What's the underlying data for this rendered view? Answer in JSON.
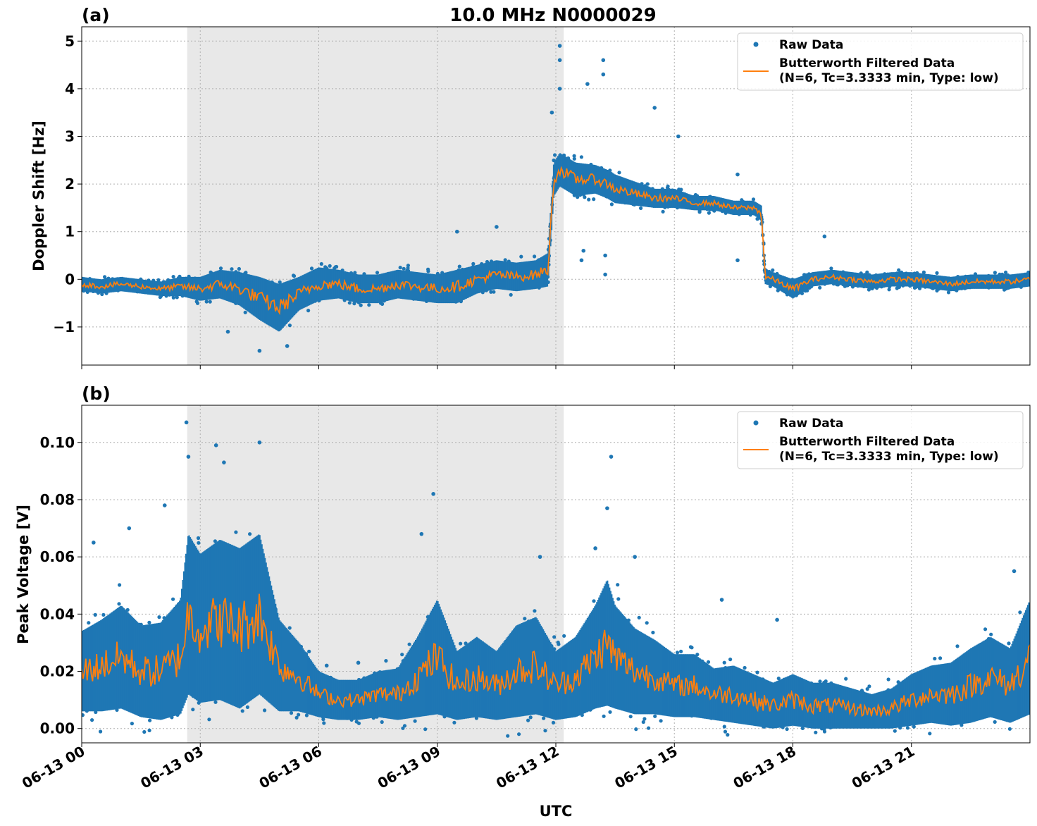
{
  "figure": {
    "xlabel": "UTC",
    "shade": {
      "start_hour": 2.67,
      "end_hour": 12.2,
      "color": "#e8e8e8"
    },
    "colors": {
      "raw": "#1f77b4",
      "filtered": "#ff7f0e",
      "grid": "#b0b0b0"
    }
  },
  "legend": {
    "raw": "Raw Data",
    "filtered_line1": "Butterworth Filtered Data",
    "filtered_line2": "(N=6, Tc=3.3333 min, Type: low)"
  },
  "chart_data": [
    {
      "type": "scatter",
      "panel_label": "(a)",
      "title": "10.0 MHz N0000029",
      "ylabel": "Doppler Shift [Hz]",
      "xlim": [
        0,
        24
      ],
      "ylim": [
        -1.8,
        5.3
      ],
      "yticks": [
        -1,
        0,
        1,
        2,
        3,
        4,
        5
      ],
      "ytick_labels": [
        "−1",
        "0",
        "1",
        "2",
        "3",
        "4",
        "5"
      ],
      "xticks": [
        0,
        3,
        6,
        9,
        12,
        15,
        18,
        21
      ],
      "xtick_labels": [],
      "grid": true,
      "legend_position": "top-right",
      "series": [
        {
          "name": "Raw Data",
          "style": "points",
          "x": [
            0,
            0.5,
            1,
            1.5,
            2,
            2.5,
            3,
            3.5,
            4,
            4.5,
            5,
            5.5,
            6,
            6.5,
            7,
            7.5,
            8,
            8.5,
            9,
            9.5,
            10,
            10.5,
            11,
            11.5,
            11.8,
            11.95,
            12.1,
            12.5,
            13,
            13.3,
            13.5,
            14,
            14.5,
            15,
            15.5,
            16,
            16.5,
            17,
            17.2,
            17.3,
            17.5,
            18,
            18.5,
            19,
            19.5,
            20,
            20.5,
            21,
            21.5,
            22,
            22.5,
            23,
            23.5,
            24
          ],
          "y_mid": [
            -0.1,
            -0.15,
            -0.1,
            -0.15,
            -0.2,
            -0.15,
            -0.2,
            -0.1,
            -0.2,
            -0.4,
            -0.6,
            -0.3,
            -0.1,
            -0.1,
            -0.2,
            -0.2,
            -0.1,
            -0.15,
            -0.2,
            -0.15,
            0.0,
            0.1,
            0.05,
            0.1,
            0.2,
            2.1,
            2.3,
            2.1,
            2.1,
            2.0,
            1.9,
            1.8,
            1.7,
            1.7,
            1.6,
            1.6,
            1.5,
            1.5,
            1.4,
            0.05,
            0.0,
            -0.2,
            0.0,
            0.05,
            0.0,
            -0.05,
            0.0,
            0.0,
            -0.05,
            -0.1,
            -0.05,
            -0.05,
            -0.05,
            0.0
          ],
          "spread": [
            0.15,
            0.15,
            0.15,
            0.15,
            0.15,
            0.2,
            0.25,
            0.3,
            0.35,
            0.45,
            0.5,
            0.35,
            0.35,
            0.3,
            0.3,
            0.3,
            0.3,
            0.3,
            0.3,
            0.35,
            0.3,
            0.3,
            0.3,
            0.3,
            0.35,
            0.35,
            0.35,
            0.35,
            0.3,
            0.3,
            0.3,
            0.25,
            0.2,
            0.2,
            0.15,
            0.15,
            0.15,
            0.15,
            0.15,
            0.15,
            0.15,
            0.2,
            0.15,
            0.15,
            0.15,
            0.15,
            0.15,
            0.15,
            0.15,
            0.15,
            0.15,
            0.15,
            0.15,
            0.15
          ],
          "outliers": [
            [
              11.9,
              3.5
            ],
            [
              12.1,
              4.9
            ],
            [
              12.1,
              4.6
            ],
            [
              12.1,
              4.0
            ],
            [
              12.8,
              4.1
            ],
            [
              13.2,
              4.6
            ],
            [
              13.2,
              4.3
            ],
            [
              13.25,
              0.1
            ],
            [
              13.25,
              0.5
            ],
            [
              14.5,
              3.6
            ],
            [
              12.65,
              0.4
            ],
            [
              12.7,
              0.6
            ],
            [
              16.6,
              0.4
            ],
            [
              16.6,
              2.2
            ],
            [
              18.8,
              0.9
            ],
            [
              9.5,
              1.0
            ],
            [
              10.5,
              1.1
            ],
            [
              4.5,
              -1.5
            ],
            [
              5.2,
              -1.4
            ],
            [
              3.7,
              -1.1
            ],
            [
              15.1,
              3.0
            ]
          ]
        },
        {
          "name": "Butterworth Filtered Data (N=6, Tc=3.3333 min, Type: low)",
          "style": "line",
          "x": [
            0,
            0.5,
            1,
            1.5,
            2,
            2.5,
            3,
            3.5,
            4,
            4.5,
            5,
            5.5,
            6,
            6.5,
            7,
            7.5,
            8,
            8.5,
            9,
            9.5,
            10,
            10.5,
            11,
            11.5,
            11.8,
            11.95,
            12.1,
            12.5,
            13,
            13.3,
            13.5,
            14,
            14.5,
            15,
            15.5,
            16,
            16.5,
            17,
            17.2,
            17.3,
            17.5,
            18,
            18.5,
            19,
            19.5,
            20,
            20.5,
            21,
            21.5,
            22,
            22.5,
            23,
            23.5,
            24
          ],
          "y": [
            -0.1,
            -0.15,
            -0.1,
            -0.15,
            -0.2,
            -0.15,
            -0.2,
            -0.1,
            -0.2,
            -0.4,
            -0.6,
            -0.3,
            -0.1,
            -0.1,
            -0.2,
            -0.2,
            -0.1,
            -0.15,
            -0.2,
            -0.15,
            0.0,
            0.1,
            0.05,
            0.1,
            0.2,
            2.1,
            2.3,
            2.1,
            2.1,
            2.0,
            1.9,
            1.8,
            1.7,
            1.7,
            1.6,
            1.6,
            1.5,
            1.5,
            1.4,
            0.05,
            0.0,
            -0.2,
            0.0,
            0.05,
            0.0,
            -0.05,
            0.0,
            0.0,
            -0.05,
            -0.1,
            -0.05,
            -0.05,
            -0.05,
            0.0
          ]
        }
      ]
    },
    {
      "type": "scatter",
      "panel_label": "(b)",
      "title": "",
      "ylabel": "Peak Voltage [V]",
      "xlim": [
        0,
        24
      ],
      "ylim": [
        -0.005,
        0.113
      ],
      "yticks": [
        0.0,
        0.02,
        0.04,
        0.06,
        0.08,
        0.1
      ],
      "ytick_labels": [
        "0.00",
        "0.02",
        "0.04",
        "0.06",
        "0.08",
        "0.10"
      ],
      "xticks": [
        0,
        3,
        6,
        9,
        12,
        15,
        18,
        21
      ],
      "xtick_labels": [
        "06-13 00",
        "06-13 03",
        "06-13 06",
        "06-13 09",
        "06-13 12",
        "06-13 15",
        "06-13 18",
        "06-13 21"
      ],
      "grid": true,
      "legend_position": "top-right",
      "series": [
        {
          "name": "Raw Data",
          "style": "points",
          "x": [
            0,
            0.5,
            1,
            1.5,
            2,
            2.5,
            2.7,
            3,
            3.5,
            4,
            4.5,
            5,
            5.5,
            6,
            6.5,
            7,
            7.5,
            8,
            8.5,
            9,
            9.5,
            10,
            10.5,
            11,
            11.5,
            12,
            12.5,
            13,
            13.3,
            13.5,
            14,
            14.5,
            15,
            15.5,
            16,
            16.5,
            17,
            17.5,
            18,
            18.5,
            19,
            19.5,
            20,
            20.5,
            21,
            21.5,
            22,
            22.5,
            23,
            23.5,
            24
          ],
          "y_mid": [
            0.02,
            0.022,
            0.025,
            0.02,
            0.02,
            0.025,
            0.04,
            0.035,
            0.038,
            0.035,
            0.04,
            0.022,
            0.018,
            0.012,
            0.01,
            0.01,
            0.012,
            0.012,
            0.018,
            0.025,
            0.015,
            0.018,
            0.015,
            0.02,
            0.022,
            0.015,
            0.018,
            0.025,
            0.03,
            0.025,
            0.02,
            0.018,
            0.015,
            0.015,
            0.012,
            0.012,
            0.01,
            0.008,
            0.01,
            0.008,
            0.008,
            0.007,
            0.006,
            0.007,
            0.01,
            0.012,
            0.012,
            0.015,
            0.018,
            0.015,
            0.025
          ],
          "spread": [
            0.014,
            0.016,
            0.018,
            0.016,
            0.017,
            0.02,
            0.028,
            0.026,
            0.028,
            0.028,
            0.028,
            0.016,
            0.012,
            0.008,
            0.007,
            0.007,
            0.008,
            0.009,
            0.014,
            0.02,
            0.012,
            0.014,
            0.012,
            0.016,
            0.017,
            0.012,
            0.014,
            0.018,
            0.022,
            0.018,
            0.015,
            0.013,
            0.011,
            0.011,
            0.009,
            0.01,
            0.009,
            0.008,
            0.009,
            0.008,
            0.008,
            0.007,
            0.006,
            0.007,
            0.009,
            0.01,
            0.011,
            0.013,
            0.014,
            0.013,
            0.02
          ],
          "outliers": [
            [
              2.65,
              0.107
            ],
            [
              2.7,
              0.095
            ],
            [
              3.4,
              0.099
            ],
            [
              3.6,
              0.093
            ],
            [
              4.5,
              0.1
            ],
            [
              2.1,
              0.078
            ],
            [
              0.3,
              0.065
            ],
            [
              1.2,
              0.07
            ],
            [
              8.9,
              0.082
            ],
            [
              8.6,
              0.068
            ],
            [
              13.4,
              0.095
            ],
            [
              13.3,
              0.077
            ],
            [
              13.0,
              0.063
            ],
            [
              11.6,
              0.06
            ],
            [
              14.0,
              0.06
            ],
            [
              16.2,
              0.045
            ],
            [
              17.6,
              0.038
            ],
            [
              23.6,
              0.055
            ],
            [
              7.0,
              0.023
            ],
            [
              6.2,
              0.022
            ]
          ]
        },
        {
          "name": "Butterworth Filtered Data (N=6, Tc=3.3333 min, Type: low)",
          "style": "line",
          "x": [
            0,
            0.5,
            1,
            1.5,
            2,
            2.5,
            2.7,
            3,
            3.5,
            4,
            4.5,
            5,
            5.5,
            6,
            6.5,
            7,
            7.5,
            8,
            8.5,
            9,
            9.5,
            10,
            10.5,
            11,
            11.5,
            12,
            12.5,
            13,
            13.3,
            13.5,
            14,
            14.5,
            15,
            15.5,
            16,
            16.5,
            17,
            17.5,
            18,
            18.5,
            19,
            19.5,
            20,
            20.5,
            21,
            21.5,
            22,
            22.5,
            23,
            23.5,
            24
          ],
          "y": [
            0.02,
            0.022,
            0.025,
            0.02,
            0.02,
            0.025,
            0.04,
            0.035,
            0.038,
            0.035,
            0.04,
            0.022,
            0.018,
            0.012,
            0.01,
            0.01,
            0.012,
            0.012,
            0.018,
            0.025,
            0.015,
            0.018,
            0.015,
            0.02,
            0.022,
            0.015,
            0.018,
            0.025,
            0.03,
            0.025,
            0.02,
            0.018,
            0.015,
            0.015,
            0.012,
            0.012,
            0.01,
            0.008,
            0.01,
            0.008,
            0.008,
            0.007,
            0.006,
            0.007,
            0.01,
            0.012,
            0.012,
            0.015,
            0.018,
            0.015,
            0.025
          ]
        }
      ]
    }
  ]
}
